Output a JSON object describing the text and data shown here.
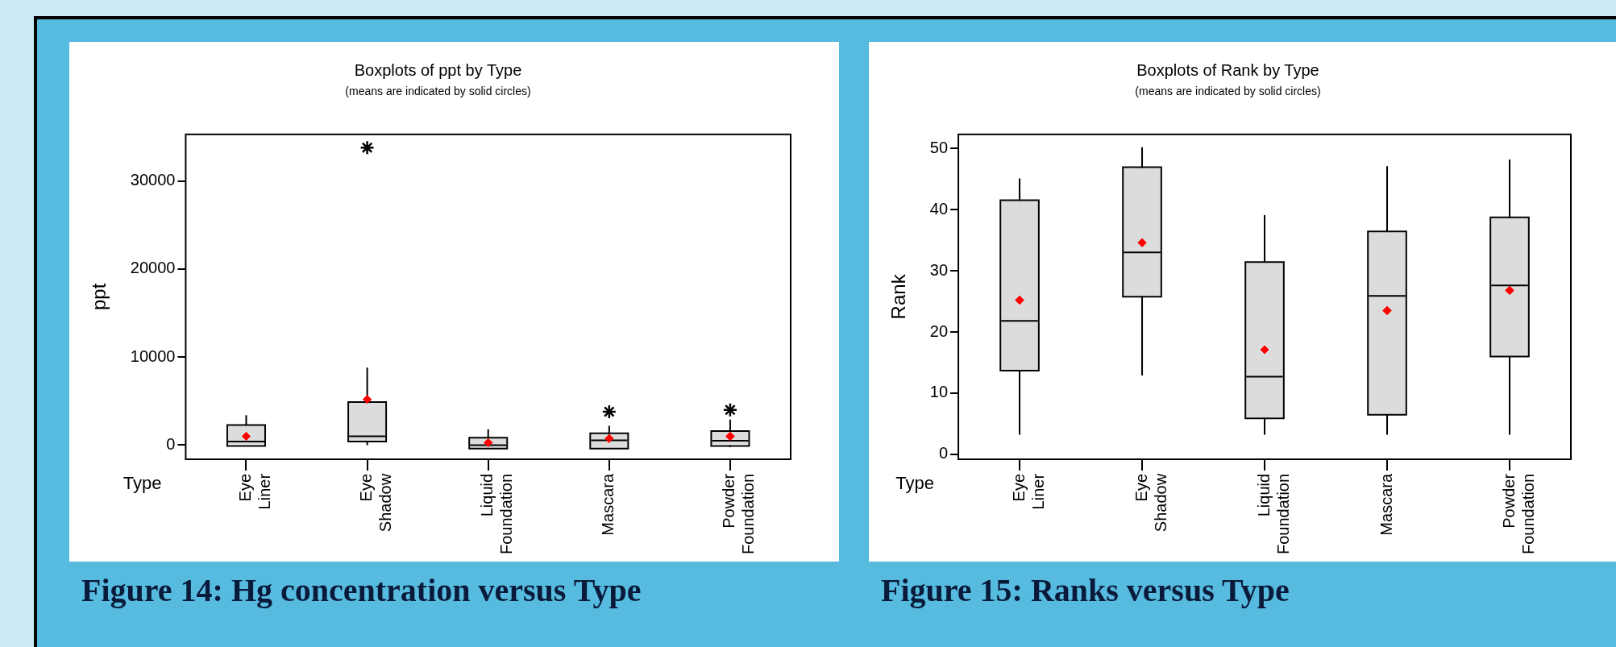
{
  "chart_data": [
    {
      "type": "box",
      "title": "Boxplots of ppt by Type",
      "subtitle": "(means are indicated by solid circles)",
      "xlabel": "Type",
      "ylabel": "ppt",
      "annotations": [
        "Figure 14: Hg concentration versus Type"
      ],
      "categories": [
        "Eye Liner",
        "Eye Shadow",
        "Liquid Foundation",
        "Mascara",
        "Powder Foundation"
      ],
      "ylim": [
        -1600,
        35300
      ],
      "yticks": [
        0,
        10000,
        20000,
        30000
      ],
      "grid": false,
      "legend": false,
      "series": [
        {
          "color": "#dcdcdc",
          "boxes": [
            {
              "low": 0,
              "q1": 0,
              "median": 400,
              "q3": 2200,
              "high": 3400,
              "mean": 1000
            },
            {
              "low": 0,
              "q1": 500,
              "median": 1000,
              "q3": 4800,
              "high": 8800,
              "mean": 5200,
              "outliers": [
                33800
              ]
            },
            {
              "low": -300,
              "q1": -300,
              "median": 0,
              "q3": 750,
              "high": 1800,
              "mean": 270
            },
            {
              "low": -300,
              "q1": -300,
              "median": 550,
              "q3": 1250,
              "high": 2200,
              "mean": 750,
              "outliers": [
                3800
              ]
            },
            {
              "low": -200,
              "q1": 0,
              "median": 500,
              "q3": 1500,
              "high": 2900,
              "mean": 1000,
              "outliers": [
                4000
              ]
            }
          ]
        }
      ]
    },
    {
      "type": "box",
      "title": "Boxplots of Rank by Type",
      "subtitle": "(means are indicated by solid circles)",
      "xlabel": "Type",
      "ylabel": "Rank",
      "annotations": [
        "Figure 15: Ranks versus Type"
      ],
      "categories": [
        "Eye Liner",
        "Eye Shadow",
        "Liquid Foundation",
        "Mascara",
        "Powder Foundation"
      ],
      "ylim": [
        -0.8,
        52.3
      ],
      "yticks": [
        0,
        10,
        20,
        30,
        40,
        50
      ],
      "grid": false,
      "legend": false,
      "series": [
        {
          "color": "#dcdcdc",
          "boxes": [
            {
              "low": 3.2,
              "q1": 13.8,
              "median": 21.8,
              "q3": 41.4,
              "high": 45.1,
              "mean": 25.2
            },
            {
              "low": 12.9,
              "q1": 25.9,
              "median": 33,
              "q3": 46.8,
              "high": 50.2,
              "mean": 34.6
            },
            {
              "low": 3.2,
              "q1": 6,
              "median": 12.7,
              "q3": 31.3,
              "high": 39.1,
              "mean": 17.1
            },
            {
              "low": 3.2,
              "q1": 6.6,
              "median": 25.9,
              "q3": 36.3,
              "high": 47.1,
              "mean": 23.5
            },
            {
              "low": 3.2,
              "q1": 16.1,
              "median": 27.6,
              "q3": 38.6,
              "high": 48.2,
              "mean": 26.8
            }
          ]
        }
      ]
    }
  ]
}
